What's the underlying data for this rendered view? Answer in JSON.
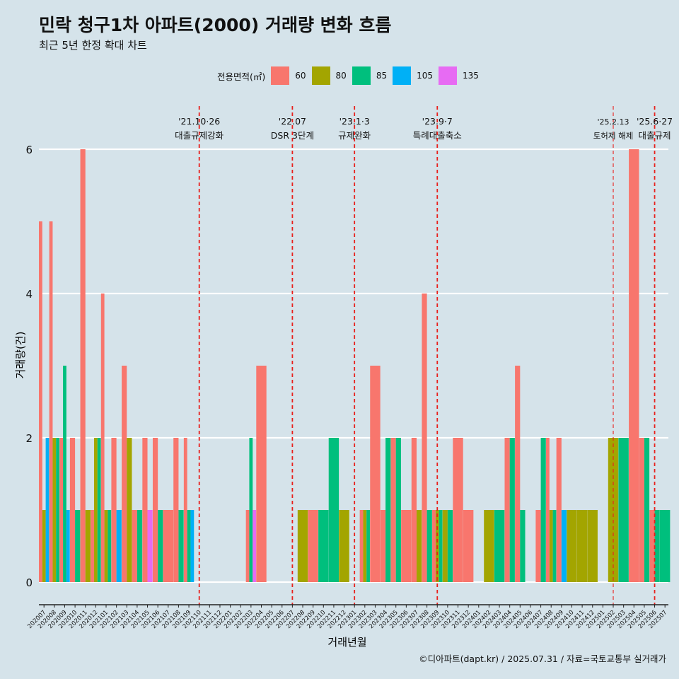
{
  "title": "민락 청구1차 아파트(2000) 거래량 변화 흐름",
  "subtitle": "최근 5년 한정 확대 차트",
  "caption": "©디아파트(dapt.kr) / 2025.07.31 / 자료=국토교통부 실거래가",
  "legend": {
    "title": "전용면적(㎡)",
    "items": [
      {
        "label": "60",
        "color": "#f8766d"
      },
      {
        "label": "80",
        "color": "#a3a500"
      },
      {
        "label": "85",
        "color": "#00bf7d"
      },
      {
        "label": "105",
        "color": "#00b0f6"
      },
      {
        "label": "135",
        "color": "#e76bf3"
      }
    ]
  },
  "chart_data": {
    "type": "bar",
    "xlabel": "거래년월",
    "ylabel": "거래량(건)",
    "ylim": [
      0,
      6
    ],
    "yticks": [
      0,
      2,
      4,
      6
    ],
    "grid": true,
    "legend_position": "top",
    "months": [
      "202007",
      "202008",
      "202009",
      "202010",
      "202011",
      "202012",
      "202101",
      "202102",
      "202103",
      "202104",
      "202105",
      "202106",
      "202107",
      "202108",
      "202109",
      "202110",
      "202111",
      "202112",
      "202201",
      "202202",
      "202203",
      "202204",
      "202205",
      "202206",
      "202207",
      "202208",
      "202209",
      "202210",
      "202211",
      "202212",
      "202301",
      "202302",
      "202303",
      "202304",
      "202305",
      "202306",
      "202307",
      "202308",
      "202309",
      "202310",
      "202311",
      "202312",
      "202401",
      "202402",
      "202403",
      "202404",
      "202405",
      "202406",
      "202407",
      "202408",
      "202409",
      "202410",
      "202411",
      "202412",
      "202501",
      "202502",
      "202503",
      "202504",
      "202505",
      "202506",
      "202507"
    ],
    "series_names": [
      "60",
      "80",
      "85",
      "105",
      "135"
    ],
    "series_colors": [
      "#f8766d",
      "#a3a500",
      "#00bf7d",
      "#00b0f6",
      "#e76bf3"
    ],
    "bars": [
      {
        "month": "202007",
        "values": [
          5,
          1,
          0,
          2,
          0
        ]
      },
      {
        "month": "202008",
        "values": [
          5,
          2,
          2,
          0,
          0
        ]
      },
      {
        "month": "202009",
        "values": [
          2,
          0,
          3,
          1,
          0
        ]
      },
      {
        "month": "202010",
        "values": [
          2,
          0,
          1,
          0,
          0
        ]
      },
      {
        "month": "202011",
        "values": [
          6,
          1,
          0,
          0,
          0
        ]
      },
      {
        "month": "202012",
        "values": [
          1,
          2,
          2,
          0,
          0
        ]
      },
      {
        "month": "202101",
        "values": [
          4,
          1,
          1,
          0,
          0
        ]
      },
      {
        "month": "202102",
        "values": [
          2,
          0,
          0,
          1,
          0
        ]
      },
      {
        "month": "202103",
        "values": [
          3,
          2,
          0,
          0,
          0
        ]
      },
      {
        "month": "202104",
        "values": [
          1,
          0,
          1,
          0,
          0
        ]
      },
      {
        "month": "202105",
        "values": [
          2,
          0,
          0,
          0,
          1
        ]
      },
      {
        "month": "202106",
        "values": [
          2,
          0,
          1,
          0,
          0
        ]
      },
      {
        "month": "202107",
        "values": [
          1,
          0,
          0,
          0,
          0
        ]
      },
      {
        "month": "202108",
        "values": [
          2,
          0,
          1,
          0,
          0
        ]
      },
      {
        "month": "202109",
        "values": [
          2,
          0,
          1,
          1,
          0
        ]
      },
      {
        "month": "202110",
        "values": [
          0,
          0,
          0,
          0,
          0
        ]
      },
      {
        "month": "202111",
        "values": [
          0,
          0,
          0,
          0,
          0
        ]
      },
      {
        "month": "202112",
        "values": [
          0,
          0,
          0,
          0,
          0
        ]
      },
      {
        "month": "202201",
        "values": [
          0,
          0,
          0,
          0,
          0
        ]
      },
      {
        "month": "202202",
        "values": [
          0,
          0,
          0,
          0,
          0
        ]
      },
      {
        "month": "202203",
        "values": [
          1,
          0,
          2,
          0,
          1
        ]
      },
      {
        "month": "202204",
        "values": [
          3,
          0,
          0,
          0,
          0
        ]
      },
      {
        "month": "202205",
        "values": [
          0,
          0,
          0,
          0,
          0
        ]
      },
      {
        "month": "202206",
        "values": [
          0,
          0,
          0,
          0,
          0
        ]
      },
      {
        "month": "202207",
        "values": [
          0,
          0,
          0,
          0,
          0
        ]
      },
      {
        "month": "202208",
        "values": [
          0,
          1,
          0,
          0,
          0
        ]
      },
      {
        "month": "202209",
        "values": [
          1,
          0,
          0,
          0,
          0
        ]
      },
      {
        "month": "202210",
        "values": [
          0,
          0,
          1,
          0,
          0
        ]
      },
      {
        "month": "202211",
        "values": [
          0,
          0,
          2,
          0,
          0
        ]
      },
      {
        "month": "202212",
        "values": [
          0,
          1,
          0,
          0,
          0
        ]
      },
      {
        "month": "202301",
        "values": [
          0,
          0,
          0,
          0,
          0
        ]
      },
      {
        "month": "202302",
        "values": [
          1,
          1,
          1,
          0,
          0
        ]
      },
      {
        "month": "202303",
        "values": [
          3,
          0,
          0,
          0,
          0
        ]
      },
      {
        "month": "202304",
        "values": [
          1,
          0,
          2,
          0,
          0
        ]
      },
      {
        "month": "202305",
        "values": [
          2,
          0,
          2,
          0,
          0
        ]
      },
      {
        "month": "202306",
        "values": [
          1,
          0,
          0,
          0,
          0
        ]
      },
      {
        "month": "202307",
        "values": [
          2,
          1,
          0,
          0,
          0
        ]
      },
      {
        "month": "202308",
        "values": [
          4,
          0,
          1,
          0,
          0
        ]
      },
      {
        "month": "202309",
        "values": [
          1,
          1,
          1,
          0,
          0
        ]
      },
      {
        "month": "202310",
        "values": [
          0,
          1,
          1,
          0,
          0
        ]
      },
      {
        "month": "202311",
        "values": [
          2,
          0,
          0,
          0,
          0
        ]
      },
      {
        "month": "202312",
        "values": [
          1,
          0,
          0,
          0,
          0
        ]
      },
      {
        "month": "202401",
        "values": [
          0,
          0,
          0,
          0,
          0
        ]
      },
      {
        "month": "202402",
        "values": [
          0,
          1,
          0,
          0,
          0
        ]
      },
      {
        "month": "202403",
        "values": [
          0,
          0,
          1,
          0,
          0
        ]
      },
      {
        "month": "202404",
        "values": [
          2,
          0,
          2,
          0,
          0
        ]
      },
      {
        "month": "202405",
        "values": [
          3,
          0,
          1,
          0,
          0
        ]
      },
      {
        "month": "202406",
        "values": [
          0,
          0,
          0,
          0,
          0
        ]
      },
      {
        "month": "202407",
        "values": [
          1,
          0,
          2,
          0,
          0
        ]
      },
      {
        "month": "202408",
        "values": [
          2,
          1,
          1,
          0,
          0
        ]
      },
      {
        "month": "202409",
        "values": [
          2,
          0,
          0,
          1,
          0
        ]
      },
      {
        "month": "202410",
        "values": [
          0,
          1,
          0,
          0,
          0
        ]
      },
      {
        "month": "202411",
        "values": [
          0,
          1,
          0,
          0,
          0
        ]
      },
      {
        "month": "202412",
        "values": [
          0,
          1,
          0,
          0,
          0
        ]
      },
      {
        "month": "202501",
        "values": [
          0,
          0,
          0,
          0,
          0
        ]
      },
      {
        "month": "202502",
        "values": [
          0,
          2,
          0,
          0,
          0
        ]
      },
      {
        "month": "202503",
        "values": [
          0,
          0,
          2,
          0,
          0
        ]
      },
      {
        "month": "202504",
        "values": [
          6,
          0,
          0,
          0,
          0
        ]
      },
      {
        "month": "202505",
        "values": [
          2,
          0,
          2,
          0,
          0
        ]
      },
      {
        "month": "202506",
        "values": [
          1,
          0,
          1,
          0,
          0
        ]
      },
      {
        "month": "202507",
        "values": [
          0,
          0,
          1,
          0,
          0
        ]
      }
    ],
    "annotations": [
      {
        "month": "202110",
        "date": "'21.10·26",
        "label": "대출규제강화",
        "style": "thick"
      },
      {
        "month": "202207",
        "date": "'22.07",
        "label": "DSR 3단계",
        "style": "thick"
      },
      {
        "month": "202301",
        "date": "'23.1·3",
        "label": "규제완화",
        "style": "thick"
      },
      {
        "month": "202309",
        "date": "'23.9·7",
        "label": "특례대출축소",
        "style": "thick"
      },
      {
        "month": "202502",
        "date": "'25.2.13",
        "label": "토허제 해제",
        "style": "thin"
      },
      {
        "month": "202506",
        "date": "'25.6·27",
        "label": "대출규제",
        "style": "thick"
      }
    ]
  }
}
